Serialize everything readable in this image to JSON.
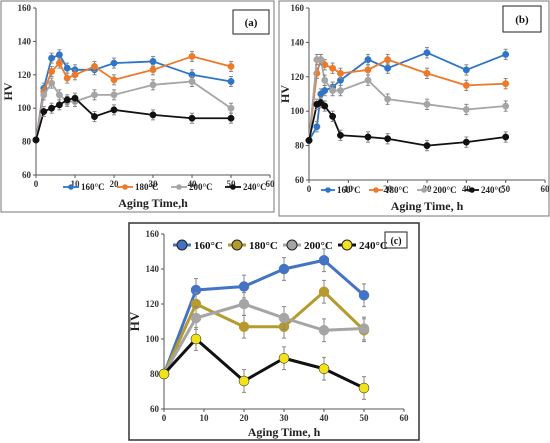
{
  "chart_data": [
    {
      "type": "line",
      "panel_label": "(a)",
      "xlabel": "Aging Time,h",
      "ylabel": "HV",
      "xlim": [
        0,
        60
      ],
      "ylim": [
        60,
        160
      ],
      "xticks": [
        "0",
        "10",
        "20",
        "30",
        "40",
        "50",
        "60"
      ],
      "yticks": [
        "60",
        "80",
        "100",
        "120",
        "140",
        "160"
      ],
      "grid": false,
      "legend_position": "bottom",
      "error_bars": true,
      "series": [
        {
          "name": "160°C",
          "color": "#2e75c7",
          "x": [
            0,
            2,
            4,
            6,
            8,
            10,
            15,
            20,
            30,
            40,
            50
          ],
          "y": [
            81,
            112,
            130,
            132,
            124,
            123,
            123,
            127,
            128,
            120,
            116
          ]
        },
        {
          "name": "180°C",
          "color": "#ec7a2a",
          "x": [
            0,
            2,
            4,
            6,
            8,
            10,
            15,
            20,
            30,
            40,
            50
          ],
          "y": [
            81,
            110,
            122,
            127,
            118,
            120,
            125,
            117,
            123,
            131,
            125
          ]
        },
        {
          "name": "200°C",
          "color": "#a5a5a5",
          "x": [
            0,
            2,
            4,
            6,
            8,
            10,
            15,
            20,
            30,
            40,
            50
          ],
          "y": [
            81,
            108,
            115,
            108,
            104,
            104,
            108,
            108,
            114,
            116,
            100
          ]
        },
        {
          "name": "240°C",
          "color": "#111111",
          "x": [
            0,
            2,
            4,
            6,
            8,
            10,
            15,
            20,
            30,
            40,
            50
          ],
          "y": [
            81,
            98,
            100,
            102,
            105,
            106,
            95,
            99,
            96,
            94,
            94
          ]
        }
      ]
    },
    {
      "type": "line",
      "panel_label": "(b)",
      "xlabel": "Aging Time, h",
      "ylabel": "HV",
      "xlim": [
        0,
        60
      ],
      "ylim": [
        60,
        160
      ],
      "xticks": [
        "0",
        "10",
        "20",
        "30",
        "40",
        "50",
        "60"
      ],
      "yticks": [
        "60",
        "80",
        "100",
        "120",
        "140",
        "160"
      ],
      "grid": false,
      "legend_position": "bottom",
      "error_bars": true,
      "series": [
        {
          "name": "160°C",
          "color": "#2e75c7",
          "x": [
            0,
            2,
            3,
            4,
            6,
            8,
            15,
            20,
            30,
            40,
            50
          ],
          "y": [
            83,
            91,
            110,
            112,
            114,
            118,
            130,
            125,
            134,
            124,
            133
          ]
        },
        {
          "name": "180°C",
          "color": "#ec7a2a",
          "x": [
            0,
            2,
            3,
            4,
            6,
            8,
            15,
            20,
            30,
            40,
            50
          ],
          "y": [
            83,
            122,
            130,
            127,
            125,
            122,
            124,
            130,
            122,
            115,
            116
          ]
        },
        {
          "name": "200°C",
          "color": "#a5a5a5",
          "x": [
            0,
            2,
            3,
            4,
            6,
            8,
            15,
            20,
            30,
            40,
            50
          ],
          "y": [
            83,
            130,
            130,
            118,
            112,
            112,
            118,
            107,
            104,
            101,
            103
          ]
        },
        {
          "name": "240°C",
          "color": "#111111",
          "x": [
            0,
            2,
            3,
            4,
            6,
            8,
            15,
            20,
            30,
            40,
            50
          ],
          "y": [
            83,
            104,
            105,
            103,
            97,
            86,
            85,
            84,
            80,
            82,
            85
          ]
        }
      ]
    },
    {
      "type": "line",
      "panel_label": "(c)",
      "xlabel": "Aging Time, h",
      "ylabel": "HV",
      "xlim": [
        0,
        60
      ],
      "ylim": [
        60,
        160
      ],
      "xticks": [
        "0",
        "10",
        "20",
        "30",
        "40",
        "50",
        "60"
      ],
      "yticks": [
        "60",
        "80",
        "100",
        "120",
        "140",
        "160"
      ],
      "grid": false,
      "legend_position": "top",
      "error_bars": true,
      "series": [
        {
          "name": "160°C",
          "color": "#4472c4",
          "x": [
            0,
            8,
            20,
            30,
            40,
            50
          ],
          "y": [
            80,
            128,
            130,
            140,
            145,
            125
          ]
        },
        {
          "name": "180°C",
          "color": "#b59a2e",
          "x": [
            0,
            8,
            20,
            30,
            40,
            50
          ],
          "y": [
            80,
            120,
            107,
            107,
            127,
            105
          ]
        },
        {
          "name": "200°C",
          "color": "#a5a5a5",
          "x": [
            0,
            8,
            20,
            30,
            40,
            50
          ],
          "y": [
            80,
            112,
            120,
            112,
            105,
            106
          ]
        },
        {
          "name": "240°C",
          "color": "#111111",
          "marker_color": "#f2e21a",
          "x": [
            0,
            8,
            20,
            30,
            40,
            50
          ],
          "y": [
            80,
            100,
            76,
            89,
            83,
            72
          ]
        }
      ]
    }
  ]
}
